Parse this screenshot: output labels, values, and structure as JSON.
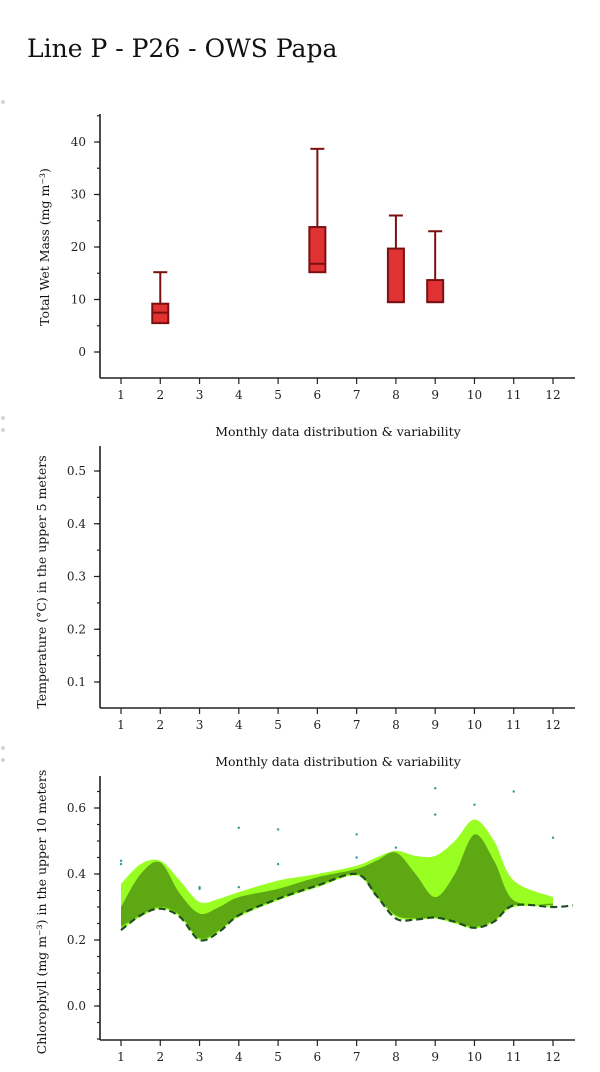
{
  "page_title": "Line P - P26 - OWS Papa",
  "chart_data": [
    {
      "type": "box",
      "ylabel": "Total Wet Mass (mg m⁻³)",
      "xlabel": "Monthly data distribution & variability",
      "x_ticks": [
        "1",
        "2",
        "3",
        "4",
        "5",
        "6",
        "7",
        "8",
        "9",
        "10",
        "11",
        "12"
      ],
      "ylim": [
        -5,
        45
      ],
      "y_ticks": [
        0,
        10,
        20,
        30,
        40
      ],
      "box_color": "#e03232",
      "box_edge_color": "#7a1010",
      "boxes": [
        {
          "month": 2,
          "min": 5.5,
          "q1": 5.5,
          "median": 7.5,
          "q3": 9.2,
          "max": 15.2
        },
        {
          "month": 6,
          "min": 15.2,
          "q1": 15.2,
          "median": 16.8,
          "q3": 23.8,
          "max": 38.7
        },
        {
          "month": 8,
          "min": 9.5,
          "q1": 9.5,
          "median": 9.5,
          "q3": 19.7,
          "max": 26.0
        },
        {
          "month": 9,
          "min": 9.5,
          "q1": 9.5,
          "median": 9.5,
          "q3": 13.7,
          "max": 23.0
        }
      ]
    },
    {
      "type": "line",
      "ylabel": "Temperature (°C) in the upper 5 meters",
      "xlabel": "Monthly data distribution & variability",
      "x_ticks": [
        "1",
        "2",
        "3",
        "4",
        "5",
        "6",
        "7",
        "8",
        "9",
        "10",
        "11",
        "12"
      ],
      "ylim": [
        0.05,
        0.55
      ],
      "y_ticks": [
        0.1,
        0.2,
        0.3,
        0.4,
        0.5
      ],
      "series": []
    },
    {
      "type": "area",
      "ylabel": "Chlorophyll (mg m⁻³) in the upper 10 meters",
      "x_ticks": [
        "1",
        "2",
        "3",
        "4",
        "5",
        "6",
        "7",
        "8",
        "9",
        "10",
        "11",
        "12"
      ],
      "ylim": [
        -0.1,
        0.7
      ],
      "y_ticks": [
        0.0,
        0.2,
        0.4,
        0.6
      ],
      "colors": {
        "outer": "#99ff22",
        "inner": "#5ea814",
        "median": "#1f4f1f",
        "points": "#2a9a9a"
      },
      "outer_band": {
        "x": [
          1,
          1.5,
          2,
          2.5,
          3,
          3.5,
          4,
          5,
          6,
          7,
          7.5,
          8,
          8.5,
          9,
          9.5,
          10,
          10.5,
          11,
          12
        ],
        "upper": [
          0.37,
          0.43,
          0.44,
          0.38,
          0.315,
          0.325,
          0.345,
          0.38,
          0.4,
          0.425,
          0.45,
          0.47,
          0.455,
          0.455,
          0.5,
          0.565,
          0.5,
          0.38,
          0.33
        ],
        "lower": [
          0.23,
          0.27,
          0.295,
          0.27,
          0.2,
          0.225,
          0.27,
          0.32,
          0.36,
          0.395,
          0.33,
          0.27,
          0.262,
          0.265,
          0.25,
          0.235,
          0.255,
          0.3,
          0.3
        ]
      },
      "inner_band": {
        "x": [
          1,
          1.5,
          2,
          2.5,
          3,
          3.5,
          4,
          5,
          6,
          7,
          7.5,
          8,
          8.5,
          9,
          9.5,
          10,
          10.5,
          11,
          12
        ],
        "upper": [
          0.3,
          0.4,
          0.435,
          0.34,
          0.28,
          0.3,
          0.33,
          0.355,
          0.39,
          0.415,
          0.44,
          0.465,
          0.4,
          0.33,
          0.4,
          0.52,
          0.44,
          0.32,
          0.31
        ],
        "lower": [
          0.24,
          0.275,
          0.3,
          0.275,
          0.205,
          0.23,
          0.275,
          0.325,
          0.365,
          0.4,
          0.335,
          0.275,
          0.265,
          0.268,
          0.255,
          0.24,
          0.26,
          0.305,
          0.305
        ]
      },
      "median_line": {
        "x": [
          1,
          1.5,
          2,
          2.5,
          3,
          3.5,
          4,
          5,
          6,
          7,
          7.5,
          8,
          8.5,
          9,
          9.5,
          10,
          10.5,
          11,
          12,
          12.5
        ],
        "y": [
          0.23,
          0.275,
          0.295,
          0.27,
          0.2,
          0.225,
          0.275,
          0.325,
          0.365,
          0.4,
          0.335,
          0.265,
          0.262,
          0.268,
          0.255,
          0.237,
          0.256,
          0.305,
          0.3,
          0.305
        ]
      },
      "points": [
        {
          "x": 1,
          "y": 0.44
        },
        {
          "x": 1,
          "y": 0.43
        },
        {
          "x": 3,
          "y": 0.36
        },
        {
          "x": 3,
          "y": 0.355
        },
        {
          "x": 4,
          "y": 0.54
        },
        {
          "x": 4,
          "y": 0.36
        },
        {
          "x": 5,
          "y": 0.535
        },
        {
          "x": 5,
          "y": 0.43
        },
        {
          "x": 7,
          "y": 0.52
        },
        {
          "x": 7,
          "y": 0.45
        },
        {
          "x": 8,
          "y": 0.48
        },
        {
          "x": 9,
          "y": 0.66
        },
        {
          "x": 9,
          "y": 0.58
        },
        {
          "x": 10,
          "y": 0.61
        },
        {
          "x": 11,
          "y": 0.65
        },
        {
          "x": 12,
          "y": 0.51
        }
      ]
    }
  ]
}
